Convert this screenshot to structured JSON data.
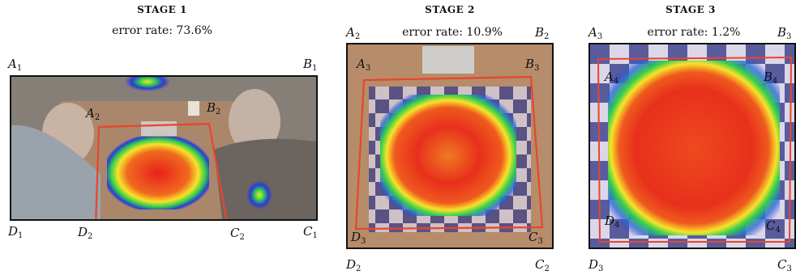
{
  "stages": [
    {
      "title": "STAGE 1",
      "error_label": "error rate: 73.6%",
      "corners_outer": {
        "a": "A",
        "b": "B",
        "c": "C",
        "d": "D",
        "sub": "1"
      },
      "corners_inner": {
        "a": "A",
        "b": "B",
        "c": "C",
        "d": "D",
        "sub": "2"
      }
    },
    {
      "title": "STAGE 2",
      "error_label": "error rate: 10.9%",
      "corners_outer": {
        "a": "A",
        "b": "B",
        "c": "C",
        "d": "D",
        "sub": "2"
      },
      "corners_inner": {
        "a": "A",
        "b": "B",
        "c": "C",
        "d": "D",
        "sub": "3"
      }
    },
    {
      "title": "STAGE 3",
      "error_label": "error rate: 1.2%",
      "corners_outer": {
        "a": "A",
        "b": "B",
        "c": "C",
        "d": "D",
        "sub": "3"
      },
      "corners_inner": {
        "a": "A",
        "b": "B",
        "c": "C",
        "d": "D",
        "sub": "4"
      }
    }
  ],
  "colors": {
    "quad_outline": "#e8452c",
    "heat_hot": "#e8201c",
    "heat_warm": "#f7e32a",
    "heat_mid": "#35d04a",
    "heat_cool": "#2a3bd8",
    "table_wood": "#b38a67",
    "background_photo": "#7f7a72"
  }
}
